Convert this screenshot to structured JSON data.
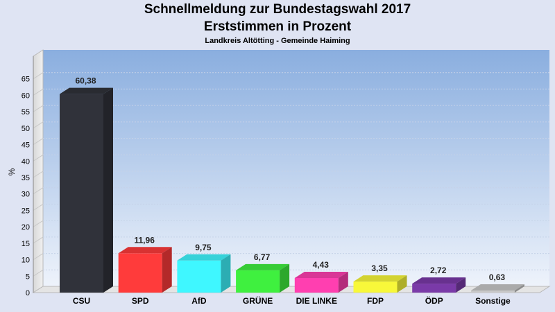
{
  "title": "Schnellmeldung zur Bundestagswahl 2017",
  "title2": "Erststimmen in Prozent",
  "subtitle": "Landkreis Altötting - Gemeinde Haiming",
  "chart_data": {
    "type": "bar",
    "title": "Schnellmeldung zur Bundestagswahl 2017",
    "subtitle": "Erststimmen in Prozent",
    "xlabel": "",
    "ylabel": "%",
    "ylim": [
      0,
      70
    ],
    "yticks": [
      0,
      5,
      10,
      15,
      20,
      25,
      30,
      35,
      40,
      45,
      50,
      55,
      60,
      65
    ],
    "grid": true,
    "categories": [
      "CSU",
      "SPD",
      "AfD",
      "GRÜNE",
      "DIE LINKE",
      "FDP",
      "ÖDP",
      "Sonstige"
    ],
    "values": [
      60.38,
      11.96,
      9.75,
      6.77,
      4.43,
      3.35,
      2.72,
      0.63
    ],
    "labels": [
      "60,38",
      "11,96",
      "9,75",
      "6,77",
      "4,43",
      "3,35",
      "2,72",
      "0,63"
    ],
    "colors": [
      "#30323a",
      "#ff3b3b",
      "#3ff7ff",
      "#3ff03f",
      "#ff3fb0",
      "#f8f83a",
      "#7a3aa8",
      "#c8c8c8"
    ]
  }
}
